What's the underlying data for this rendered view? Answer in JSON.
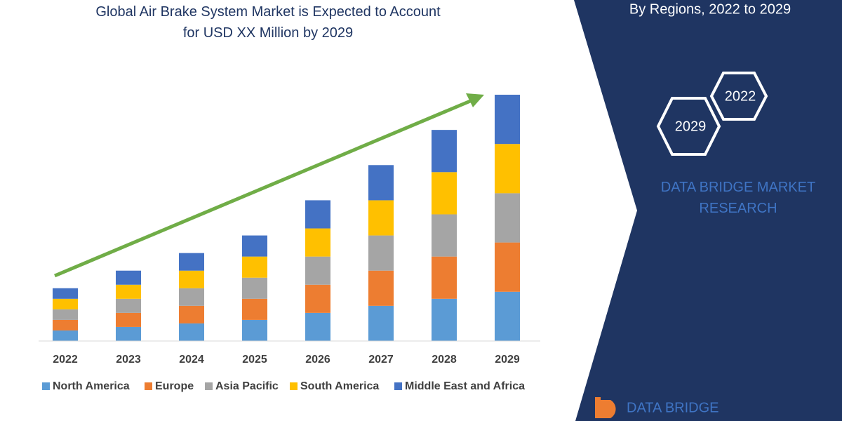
{
  "chart_data": {
    "type": "stacked-bar",
    "title": "Global Air Brake System Market is Expected to Account for USD XX Million by 2029",
    "categories": [
      "2022",
      "2023",
      "2024",
      "2025",
      "2026",
      "2027",
      "2028",
      "2029"
    ],
    "series": [
      {
        "name": "North America",
        "color": "#5b9bd5",
        "values": [
          15,
          20,
          25,
          30,
          40,
          50,
          60,
          70
        ]
      },
      {
        "name": "Europe",
        "color": "#ed7d31",
        "values": [
          15,
          20,
          25,
          30,
          40,
          50,
          60,
          70
        ]
      },
      {
        "name": "Asia Pacific",
        "color": "#a5a5a5",
        "values": [
          15,
          20,
          25,
          30,
          40,
          50,
          60,
          70
        ]
      },
      {
        "name": "South America",
        "color": "#ffc000",
        "values": [
          15,
          20,
          25,
          30,
          40,
          50,
          60,
          70
        ]
      },
      {
        "name": "Middle East and Africa",
        "color": "#4472c4",
        "values": [
          15,
          20,
          25,
          30,
          40,
          50,
          60,
          70
        ]
      }
    ],
    "ylim": [
      0,
      350
    ]
  },
  "panel": {
    "subtitle": "By Regions, 2022 to 2029",
    "hex_start": "2022",
    "hex_end": "2029",
    "brand": "DATA BRIDGE MARKET RESEARCH",
    "logo": "DATA BRIDGE"
  }
}
